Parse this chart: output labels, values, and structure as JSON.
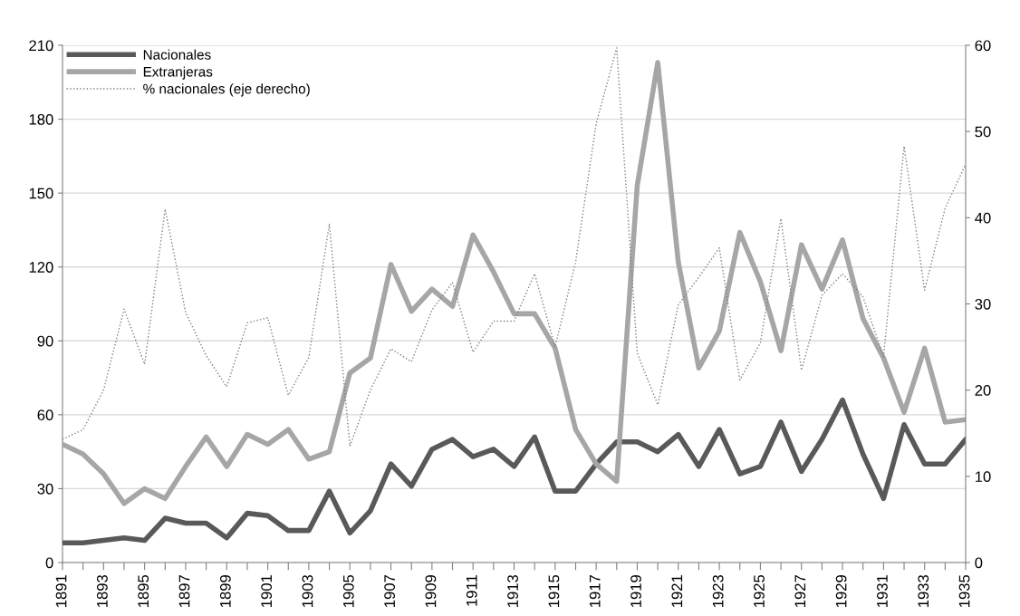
{
  "chart_data": {
    "type": "line",
    "categories": [
      "1891",
      null,
      "1893",
      null,
      "1895",
      null,
      "1897",
      null,
      "1899",
      null,
      "1901",
      null,
      "1903",
      null,
      "1905",
      null,
      "1907",
      null,
      "1909",
      null,
      "1911",
      null,
      "1913",
      null,
      "1915",
      null,
      "1917",
      null,
      "1919",
      null,
      "1921",
      null,
      "1923",
      null,
      "1925",
      null,
      "1927",
      null,
      "1929",
      null,
      "1931",
      null,
      "1933",
      null,
      "1935"
    ],
    "series": [
      {
        "name": "Nacionales",
        "color": "#595959",
        "line_style": "solid",
        "values": [
          8,
          8,
          9,
          10,
          9,
          18,
          16,
          16,
          10,
          20,
          19,
          13,
          13,
          29,
          12,
          21,
          40,
          31,
          46,
          50,
          43,
          46,
          39,
          51,
          29,
          29,
          40,
          49,
          49,
          45,
          52,
          39,
          54,
          36,
          39,
          57,
          37,
          50,
          66,
          44,
          26,
          56,
          40,
          40,
          50
        ]
      },
      {
        "name": "Extranjeras",
        "color": "#a6a6a6",
        "line_style": "solid",
        "values": [
          48,
          44,
          36,
          24,
          30,
          26,
          39,
          51,
          39,
          52,
          48,
          54,
          42,
          45,
          77,
          83,
          121,
          102,
          111,
          104,
          133,
          118,
          101,
          101,
          87,
          54,
          40,
          33,
          153,
          203,
          122,
          79,
          94,
          134,
          114,
          86,
          129,
          111,
          131,
          99,
          83,
          61,
          87,
          57,
          58
        ]
      },
      {
        "name": "% nacionales (eje derecho)",
        "color": "#7f7f7f",
        "line_style": "dotted",
        "axis": "y2",
        "values": [
          14.3,
          15.4,
          20,
          29.4,
          23,
          41,
          29,
          24,
          20.4,
          27.8,
          28.4,
          19.4,
          23.8,
          39.3,
          13.5,
          20,
          24.8,
          23.3,
          29.3,
          32.5,
          24.4,
          28,
          28,
          33.5,
          25,
          34.9,
          50.9,
          59.7,
          24.3,
          18.3,
          29.9,
          33.1,
          36.5,
          21.2,
          25.5,
          39.9,
          22.3,
          31,
          33.5,
          30.8,
          23.9,
          48.3,
          31.6,
          41.1,
          46.2
        ]
      }
    ],
    "ylim": [
      0,
      210
    ],
    "yticks": [
      0,
      30,
      60,
      90,
      120,
      150,
      180,
      210
    ],
    "y2lim": [
      0,
      60
    ],
    "y2ticks": [
      0,
      10,
      20,
      30,
      40,
      50,
      60
    ],
    "grid": "y",
    "legend": "top left"
  }
}
